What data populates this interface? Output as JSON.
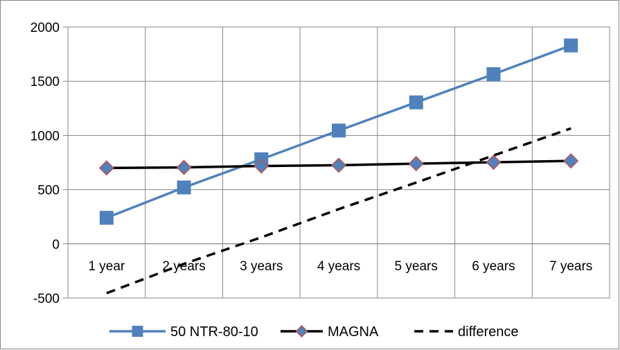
{
  "chart_data": {
    "type": "line",
    "categories": [
      "1 year",
      "2 years",
      "3 years",
      "4 years",
      "5 years",
      "6 years",
      "7 years"
    ],
    "ylim": [
      -500,
      2000
    ],
    "yticks": [
      -500,
      0,
      500,
      1000,
      1500,
      2000
    ],
    "grid": true,
    "legend_position": "bottom",
    "series": [
      {
        "name": "50 NTR-80-10",
        "values": [
          240,
          520,
          780,
          1045,
          1305,
          1565,
          1830
        ],
        "color": "#4f81bd",
        "marker": "square",
        "line_style": "solid"
      },
      {
        "name": "MAGNA",
        "values": [
          700,
          705,
          718,
          725,
          740,
          752,
          765
        ],
        "color": "#000000",
        "marker": "diamond",
        "marker_fill": "#4f81bd",
        "marker_edge": "#c0504d",
        "line_style": "solid"
      },
      {
        "name": "difference",
        "values": [
          -455,
          -185,
          60,
          320,
          565,
          815,
          1065
        ],
        "color": "#000000",
        "marker": "none",
        "line_style": "dashed"
      }
    ]
  }
}
